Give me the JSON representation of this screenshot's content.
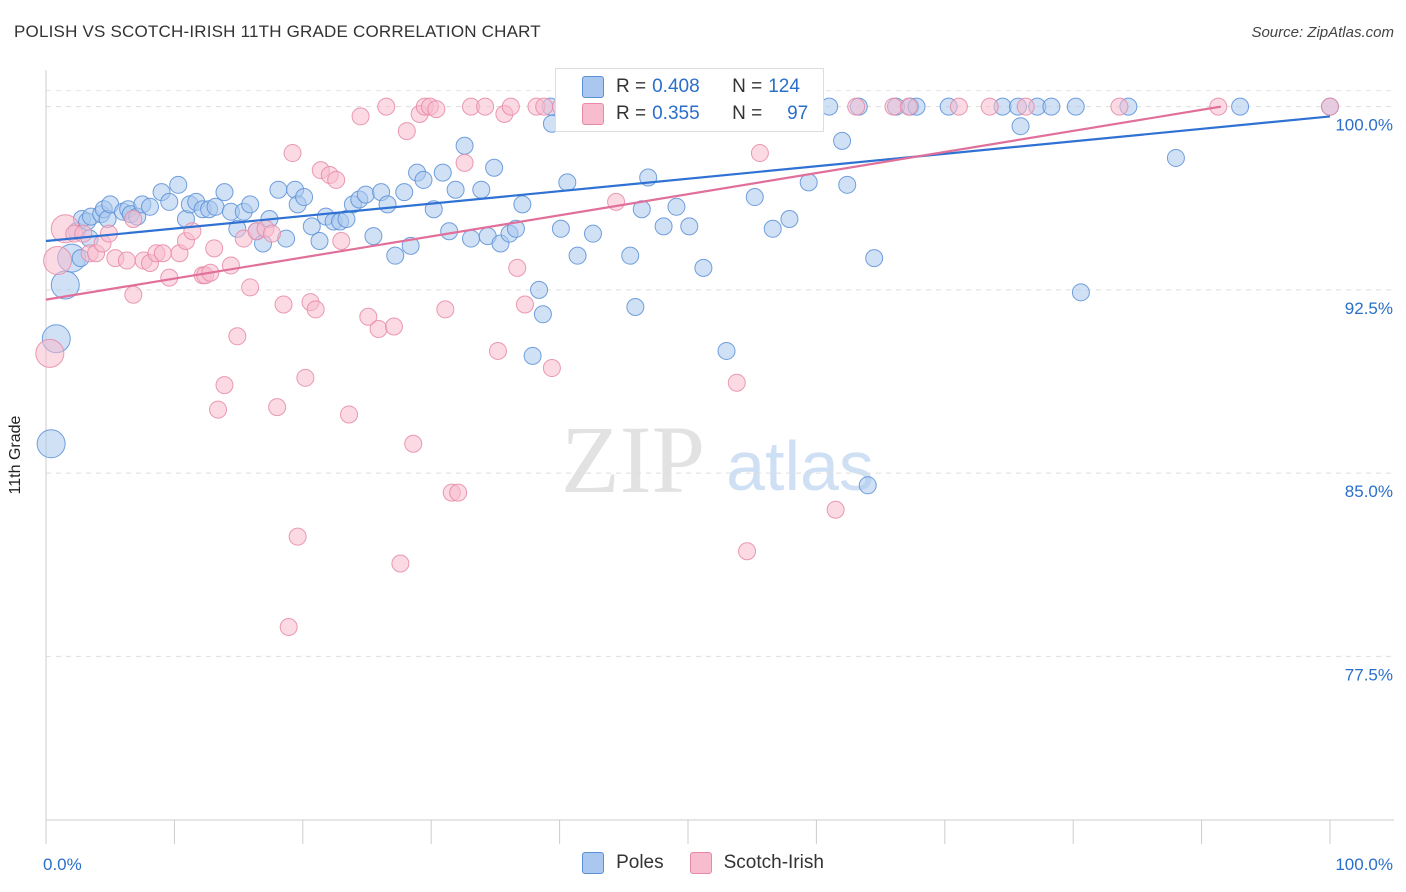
{
  "title": "POLISH VS SCOTCH-IRISH 11TH GRADE CORRELATION CHART",
  "source": "Source: ZipAtlas.com",
  "watermark": {
    "zip": "ZIP",
    "atlas": "atlas"
  },
  "legend": {
    "rows": [
      {
        "r_label": "R = ",
        "r_value": "0.408",
        "n_label": "N = ",
        "n_value": "124",
        "fill": "#aac8ef",
        "stroke": "#5b8fd6"
      },
      {
        "r_label": "R = ",
        "r_value": "0.355",
        "n_label": "N = ",
        "n_value": "97",
        "fill": "#f7bccd",
        "stroke": "#e68aa6"
      }
    ]
  },
  "chart_data": {
    "type": "scatter",
    "title": "POLISH VS SCOTCH-IRISH 11TH GRADE CORRELATION CHART",
    "xlabel": "",
    "ylabel": "11th Grade",
    "xlim": [
      0,
      100
    ],
    "ylim": [
      70.8,
      101.5
    ],
    "x_tick_labels": [
      "0.0%",
      "100.0%"
    ],
    "y_ticks": [
      77.5,
      85.0,
      92.5,
      100.0
    ],
    "y_tick_labels": [
      "77.5%",
      "85.0%",
      "92.5%",
      "100.0%"
    ],
    "grid": true,
    "legend_position": "bottom-center",
    "series": [
      {
        "name": "Poles",
        "color": "#5b8fd6",
        "fill": "#aac8ef",
        "trend": {
          "x": [
            0,
            100
          ],
          "y": [
            94.5,
            99.6
          ]
        },
        "points": [
          [
            0.4,
            86.2
          ],
          [
            0.8,
            90.5
          ],
          [
            1.5,
            92.7
          ],
          [
            2.0,
            93.8
          ],
          [
            2.7,
            93.8
          ],
          [
            2.4,
            94.9
          ],
          [
            2.8,
            95.4
          ],
          [
            3.2,
            95.3
          ],
          [
            3.4,
            94.6
          ],
          [
            3.5,
            95.5
          ],
          [
            4.3,
            95.6
          ],
          [
            4.5,
            95.8
          ],
          [
            4.8,
            95.4
          ],
          [
            5.0,
            96.0
          ],
          [
            6.0,
            95.7
          ],
          [
            6.4,
            95.8
          ],
          [
            6.6,
            95.6
          ],
          [
            7.1,
            95.5
          ],
          [
            7.5,
            96.0
          ],
          [
            8.1,
            95.9
          ],
          [
            9.0,
            96.5
          ],
          [
            9.6,
            96.1
          ],
          [
            10.3,
            96.8
          ],
          [
            10.9,
            95.4
          ],
          [
            11.2,
            96.0
          ],
          [
            11.7,
            96.1
          ],
          [
            12.2,
            95.8
          ],
          [
            12.7,
            95.8
          ],
          [
            13.2,
            95.9
          ],
          [
            13.9,
            96.5
          ],
          [
            14.4,
            95.7
          ],
          [
            14.9,
            95.0
          ],
          [
            15.4,
            95.7
          ],
          [
            15.9,
            96.0
          ],
          [
            16.4,
            94.9
          ],
          [
            16.9,
            94.4
          ],
          [
            17.4,
            95.4
          ],
          [
            18.1,
            96.6
          ],
          [
            18.7,
            94.6
          ],
          [
            19.4,
            96.6
          ],
          [
            19.6,
            96.0
          ],
          [
            20.1,
            96.3
          ],
          [
            20.7,
            95.1
          ],
          [
            21.3,
            94.5
          ],
          [
            21.8,
            95.5
          ],
          [
            22.4,
            95.3
          ],
          [
            22.9,
            95.3
          ],
          [
            23.4,
            95.4
          ],
          [
            23.9,
            96.0
          ],
          [
            24.4,
            96.2
          ],
          [
            24.9,
            96.4
          ],
          [
            25.5,
            94.7
          ],
          [
            26.1,
            96.5
          ],
          [
            26.6,
            96.0
          ],
          [
            27.2,
            93.9
          ],
          [
            27.9,
            96.5
          ],
          [
            28.4,
            94.3
          ],
          [
            28.9,
            97.3
          ],
          [
            29.4,
            97.0
          ],
          [
            30.2,
            95.8
          ],
          [
            30.9,
            97.3
          ],
          [
            31.4,
            94.9
          ],
          [
            31.9,
            96.6
          ],
          [
            32.6,
            98.4
          ],
          [
            33.1,
            94.6
          ],
          [
            33.9,
            96.6
          ],
          [
            34.4,
            94.7
          ],
          [
            34.9,
            97.5
          ],
          [
            35.4,
            94.4
          ],
          [
            36.1,
            94.8
          ],
          [
            36.6,
            95.0
          ],
          [
            37.1,
            96.0
          ],
          [
            37.9,
            89.8
          ],
          [
            38.4,
            92.5
          ],
          [
            38.7,
            91.5
          ],
          [
            39.3,
            100.0
          ],
          [
            39.4,
            99.3
          ],
          [
            40.1,
            95.0
          ],
          [
            40.6,
            96.9
          ],
          [
            40.9,
            100.0
          ],
          [
            41.4,
            93.9
          ],
          [
            42.2,
            100.0
          ],
          [
            42.6,
            94.8
          ],
          [
            43.2,
            100.0
          ],
          [
            44.0,
            99.6
          ],
          [
            44.9,
            100.0
          ],
          [
            45.5,
            93.9
          ],
          [
            45.9,
            91.8
          ],
          [
            46.4,
            95.8
          ],
          [
            46.9,
            97.1
          ],
          [
            47.6,
            100.0
          ],
          [
            48.1,
            95.1
          ],
          [
            48.6,
            100.0
          ],
          [
            49.1,
            95.9
          ],
          [
            49.6,
            100.0
          ],
          [
            50.1,
            95.1
          ],
          [
            51.2,
            93.4
          ],
          [
            52.3,
            100.0
          ],
          [
            53.0,
            90.0
          ],
          [
            54.3,
            100.0
          ],
          [
            55.2,
            96.3
          ],
          [
            56.6,
            95.0
          ],
          [
            57.5,
            100.0
          ],
          [
            57.9,
            95.4
          ],
          [
            58.9,
            100.0
          ],
          [
            59.4,
            96.9
          ],
          [
            61.0,
            100.0
          ],
          [
            62.4,
            96.8
          ],
          [
            63.3,
            100.0
          ],
          [
            64.0,
            84.5
          ],
          [
            64.5,
            93.8
          ],
          [
            66.2,
            100.0
          ],
          [
            67.3,
            100.0
          ],
          [
            67.8,
            100.0
          ],
          [
            70.3,
            100.0
          ],
          [
            74.5,
            100.0
          ],
          [
            75.7,
            100.0
          ],
          [
            75.9,
            99.2
          ],
          [
            77.2,
            100.0
          ],
          [
            78.3,
            100.0
          ],
          [
            80.2,
            100.0
          ],
          [
            80.6,
            92.4
          ],
          [
            84.3,
            100.0
          ],
          [
            88.0,
            97.9
          ],
          [
            93.0,
            100.0
          ],
          [
            100.0,
            100.0
          ],
          [
            62.0,
            98.6
          ],
          [
            51.6,
            100.0
          ]
        ],
        "sizes": {
          "large": [
            [
              0.4,
              86.2
            ],
            [
              0.8,
              90.5
            ],
            [
              1.5,
              92.7
            ],
            [
              2.0,
              93.8
            ]
          ]
        }
      },
      {
        "name": "Scotch-Irish",
        "color": "#e68aa6",
        "fill": "#f7bccd",
        "trend": {
          "x": [
            0,
            91.5
          ],
          "y": [
            92.1,
            100.0
          ]
        },
        "points": [
          [
            0.3,
            89.9
          ],
          [
            0.9,
            93.7
          ],
          [
            1.5,
            95.0
          ],
          [
            2.2,
            94.8
          ],
          [
            2.9,
            94.8
          ],
          [
            3.4,
            94.0
          ],
          [
            3.9,
            94.0
          ],
          [
            4.4,
            94.4
          ],
          [
            4.9,
            94.8
          ],
          [
            5.4,
            93.8
          ],
          [
            6.3,
            93.7
          ],
          [
            6.8,
            95.4
          ],
          [
            6.8,
            92.3
          ],
          [
            7.6,
            93.7
          ],
          [
            8.1,
            93.6
          ],
          [
            8.6,
            94.0
          ],
          [
            9.1,
            94.0
          ],
          [
            9.6,
            93.0
          ],
          [
            10.4,
            94.0
          ],
          [
            10.9,
            94.5
          ],
          [
            11.4,
            94.9
          ],
          [
            12.2,
            93.1
          ],
          [
            12.4,
            93.1
          ],
          [
            12.8,
            93.2
          ],
          [
            13.1,
            94.2
          ],
          [
            13.4,
            87.6
          ],
          [
            13.9,
            88.6
          ],
          [
            14.4,
            93.5
          ],
          [
            14.9,
            90.6
          ],
          [
            15.4,
            94.6
          ],
          [
            15.9,
            92.6
          ],
          [
            16.4,
            94.9
          ],
          [
            17.1,
            95.0
          ],
          [
            17.6,
            94.8
          ],
          [
            18.0,
            87.7
          ],
          [
            18.5,
            91.9
          ],
          [
            18.9,
            78.7
          ],
          [
            19.2,
            98.1
          ],
          [
            19.6,
            82.4
          ],
          [
            20.2,
            88.9
          ],
          [
            20.6,
            92.0
          ],
          [
            21.0,
            91.7
          ],
          [
            21.4,
            97.4
          ],
          [
            22.1,
            97.2
          ],
          [
            22.6,
            97.0
          ],
          [
            23.0,
            94.5
          ],
          [
            23.6,
            87.4
          ],
          [
            24.5,
            99.6
          ],
          [
            25.1,
            91.4
          ],
          [
            25.9,
            90.9
          ],
          [
            26.5,
            100.0
          ],
          [
            27.1,
            91.0
          ],
          [
            27.6,
            81.3
          ],
          [
            28.1,
            99.0
          ],
          [
            28.6,
            86.2
          ],
          [
            29.1,
            99.7
          ],
          [
            29.5,
            100.0
          ],
          [
            29.9,
            100.0
          ],
          [
            30.4,
            99.9
          ],
          [
            31.1,
            91.7
          ],
          [
            31.6,
            84.2
          ],
          [
            32.1,
            84.2
          ],
          [
            32.6,
            97.7
          ],
          [
            33.1,
            100.0
          ],
          [
            34.2,
            100.0
          ],
          [
            35.2,
            90.0
          ],
          [
            35.7,
            99.7
          ],
          [
            36.2,
            100.0
          ],
          [
            36.7,
            93.4
          ],
          [
            37.3,
            91.9
          ],
          [
            38.2,
            100.0
          ],
          [
            38.8,
            100.0
          ],
          [
            39.4,
            89.3
          ],
          [
            40.1,
            100.0
          ],
          [
            41.3,
            100.0
          ],
          [
            42.5,
            100.0
          ],
          [
            43.4,
            100.0
          ],
          [
            44.4,
            96.1
          ],
          [
            45.9,
            100.0
          ],
          [
            47.3,
            100.0
          ],
          [
            48.0,
            100.0
          ],
          [
            49.6,
            100.0
          ],
          [
            50.8,
            100.0
          ],
          [
            53.8,
            88.7
          ],
          [
            54.6,
            81.8
          ],
          [
            55.6,
            98.1
          ],
          [
            56.9,
            100.0
          ],
          [
            61.5,
            83.5
          ],
          [
            63.1,
            100.0
          ],
          [
            66.0,
            100.0
          ],
          [
            67.2,
            100.0
          ],
          [
            71.1,
            100.0
          ],
          [
            73.5,
            100.0
          ],
          [
            76.3,
            100.0
          ],
          [
            83.6,
            100.0
          ],
          [
            91.3,
            100.0
          ],
          [
            100.0,
            100.0
          ]
        ],
        "sizes": {
          "large": [
            [
              0.3,
              89.9
            ],
            [
              0.9,
              93.7
            ],
            [
              1.5,
              95.0
            ]
          ]
        }
      }
    ]
  },
  "bottom_legend": [
    {
      "label": "Poles",
      "fill": "#aac8ef",
      "stroke": "#5b8fd6"
    },
    {
      "label": "Scotch-Irish",
      "fill": "#f7bccd",
      "stroke": "#e68aa6"
    }
  ]
}
